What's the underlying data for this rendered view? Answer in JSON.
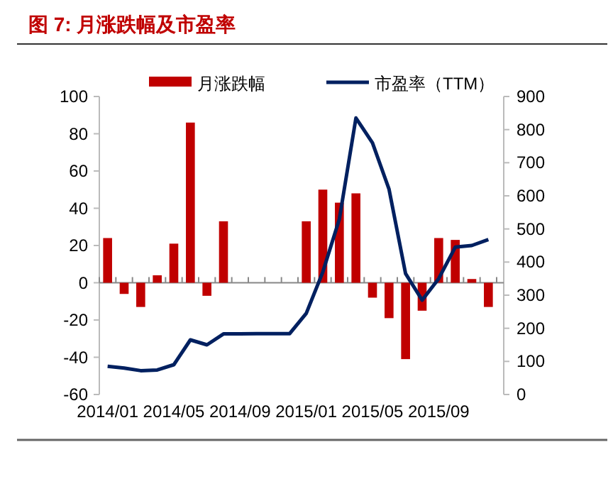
{
  "chart_data": {
    "type": "bar",
    "title": "图 7: 月涨跌幅及市盈率",
    "legend": "top",
    "categories": [
      "2014/01",
      null,
      null,
      null,
      "2014/05",
      null,
      null,
      null,
      "2014/09",
      null,
      null,
      null,
      "2015/01",
      null,
      null,
      null,
      "2015/05",
      null,
      null,
      null,
      "2015/09",
      null,
      null,
      null
    ],
    "series": [
      {
        "name": "月涨跌幅",
        "color": "#c00000",
        "values": [
          24,
          -6,
          -13,
          4,
          21,
          86,
          -7,
          33,
          0,
          0,
          0,
          0,
          33,
          50,
          43,
          48,
          -8,
          -19,
          -41,
          -15,
          24,
          23,
          2,
          -13
        ]
      },
      {
        "name": "市盈率（TTM）",
        "type": "line",
        "axis": "y2",
        "color": "#002060",
        "values": [
          85,
          80,
          72,
          74,
          90,
          165,
          150,
          183,
          183,
          184,
          184,
          184,
          245,
          370,
          530,
          835,
          760,
          620,
          365,
          285,
          350,
          445,
          450,
          468
        ]
      }
    ],
    "ylim": [
      -60,
      100
    ],
    "yticks": [
      -60,
      -40,
      -20,
      0,
      20,
      40,
      60,
      80,
      100
    ],
    "y2lim": [
      0,
      900
    ],
    "y2ticks": [
      0,
      100,
      200,
      300,
      400,
      500,
      600,
      700,
      800,
      900
    ]
  }
}
